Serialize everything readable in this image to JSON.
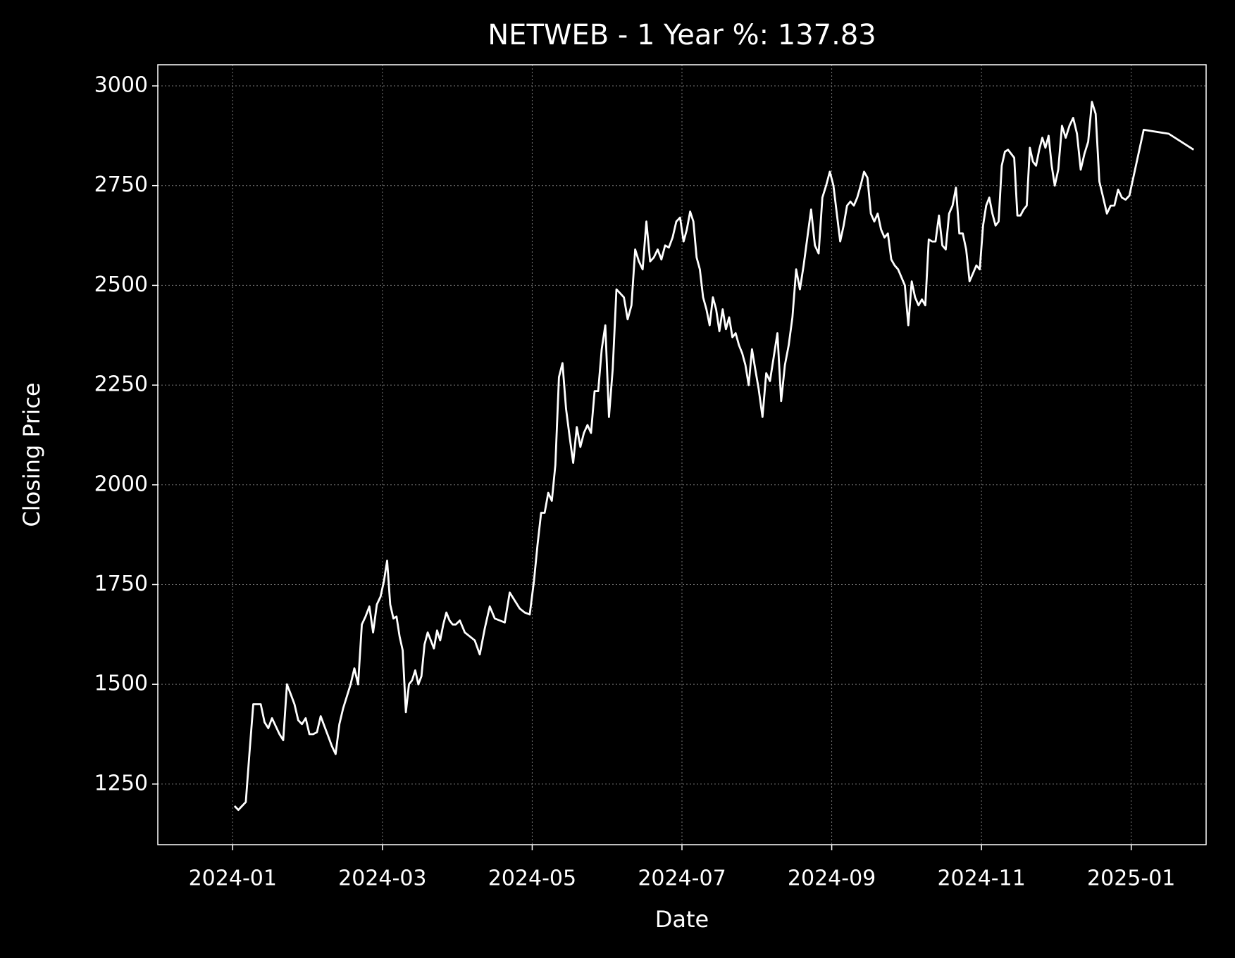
{
  "chart_data": {
    "type": "line",
    "title": "NETWEB - 1 Year %: 137.83",
    "x_label": "Date",
    "y_label": "Closing Price",
    "color": "#ffffff",
    "grid": true,
    "xlim": [
      "2023-12",
      "2025-02"
    ],
    "xticks": [
      "2024-01",
      "2024-03",
      "2024-05",
      "2024-07",
      "2024-09",
      "2024-11",
      "2025-01"
    ],
    "ylim": [
      1098,
      3053
    ],
    "yticks": [
      1250,
      1500,
      1750,
      2000,
      2250,
      2500,
      2750,
      3000
    ],
    "x": [
      "2024-01",
      "2024-01",
      "2024-01",
      "2024-01",
      "2024-01",
      "2024-01",
      "2024-01",
      "2024-01",
      "2024-01",
      "2024-01",
      "2024-01",
      "2024-01",
      "2024-01",
      "2024-01",
      "2024-01",
      "2024-01",
      "2024-01",
      "2024-01",
      "2024-01",
      "2024-01",
      "2024-02",
      "2024-02",
      "2024-02",
      "2024-02",
      "2024-02",
      "2024-02",
      "2024-02",
      "2024-02",
      "2024-02",
      "2024-02",
      "2024-02",
      "2024-02",
      "2024-02",
      "2024-02",
      "2024-02",
      "2024-02",
      "2024-02",
      "2024-02",
      "2024-02",
      "2024-02",
      "2024-03",
      "2024-03",
      "2024-03",
      "2024-03",
      "2024-03",
      "2024-03",
      "2024-03",
      "2024-03",
      "2024-03",
      "2024-03",
      "2024-03",
      "2024-03",
      "2024-03",
      "2024-03",
      "2024-03",
      "2024-03",
      "2024-03",
      "2024-03",
      "2024-03",
      "2024-03",
      "2024-03",
      "2024-03",
      "2024-03",
      "2024-03",
      "2024-04",
      "2024-04",
      "2024-04",
      "2024-04",
      "2024-04",
      "2024-04",
      "2024-04",
      "2024-04",
      "2024-04",
      "2024-04",
      "2024-04",
      "2024-04",
      "2024-04",
      "2024-04",
      "2024-04",
      "2024-05",
      "2024-05",
      "2024-05",
      "2024-05",
      "2024-05",
      "2024-05",
      "2024-05",
      "2024-05",
      "2024-05",
      "2024-05",
      "2024-05",
      "2024-05",
      "2024-05",
      "2024-05",
      "2024-05",
      "2024-05",
      "2024-05",
      "2024-05",
      "2024-05",
      "2024-05",
      "2024-05",
      "2024-06",
      "2024-06",
      "2024-06",
      "2024-06",
      "2024-06",
      "2024-06",
      "2024-06",
      "2024-06",
      "2024-06",
      "2024-06",
      "2024-06",
      "2024-06",
      "2024-06",
      "2024-06",
      "2024-06",
      "2024-06",
      "2024-06",
      "2024-06",
      "2024-06",
      "2024-06",
      "2024-07",
      "2024-07",
      "2024-07",
      "2024-07",
      "2024-07",
      "2024-07",
      "2024-07",
      "2024-07",
      "2024-07",
      "2024-07",
      "2024-07",
      "2024-07",
      "2024-07",
      "2024-07",
      "2024-07",
      "2024-07",
      "2024-07",
      "2024-07",
      "2024-07",
      "2024-07",
      "2024-07",
      "2024-07",
      "2024-07",
      "2024-08",
      "2024-08",
      "2024-08",
      "2024-08",
      "2024-08",
      "2024-08",
      "2024-08",
      "2024-08",
      "2024-08",
      "2024-08",
      "2024-08",
      "2024-08",
      "2024-08",
      "2024-08",
      "2024-08",
      "2024-08",
      "2024-08",
      "2024-08",
      "2024-08",
      "2024-08",
      "2024-09",
      "2024-09",
      "2024-09",
      "2024-09",
      "2024-09",
      "2024-09",
      "2024-09",
      "2024-09",
      "2024-09",
      "2024-09",
      "2024-09",
      "2024-09",
      "2024-09",
      "2024-09",
      "2024-09",
      "2024-09",
      "2024-09",
      "2024-09",
      "2024-09",
      "2024-09",
      "2024-09",
      "2024-09",
      "2024-10",
      "2024-10",
      "2024-10",
      "2024-10",
      "2024-10",
      "2024-10",
      "2024-10",
      "2024-10",
      "2024-10",
      "2024-10",
      "2024-10",
      "2024-10",
      "2024-10",
      "2024-10",
      "2024-10",
      "2024-10",
      "2024-10",
      "2024-10",
      "2024-10",
      "2024-10",
      "2024-10",
      "2024-10",
      "2024-11",
      "2024-11",
      "2024-11",
      "2024-11",
      "2024-11",
      "2024-11",
      "2024-11",
      "2024-11",
      "2024-11",
      "2024-11",
      "2024-11",
      "2024-11",
      "2024-11",
      "2024-11",
      "2024-11",
      "2024-11",
      "2024-11",
      "2024-11",
      "2024-11",
      "2024-11",
      "2024-11",
      "2024-11",
      "2024-11",
      "2024-11",
      "2024-12",
      "2024-12",
      "2024-12",
      "2024-12",
      "2024-12",
      "2024-12",
      "2024-12",
      "2024-12",
      "2024-12",
      "2024-12",
      "2024-12",
      "2024-12",
      "2024-12",
      "2024-12",
      "2024-12",
      "2024-12",
      "2024-12",
      "2024-12",
      "2024-12",
      "2024-12",
      "2025-01",
      "2025-01",
      "2025-01"
    ],
    "values": [
      1195,
      1185,
      1195,
      1205,
      1330,
      1450,
      1450,
      1450,
      1405,
      1390,
      1415,
      1395,
      1375,
      1360,
      1500,
      1475,
      1450,
      1410,
      1400,
      1415,
      1375,
      1375,
      1380,
      1420,
      1395,
      1370,
      1345,
      1325,
      1400,
      1440,
      1470,
      1500,
      1540,
      1500,
      1650,
      1670,
      1695,
      1630,
      1700,
      1720,
      1760,
      1810,
      1700,
      1665,
      1670,
      1620,
      1585,
      1430,
      1500,
      1510,
      1535,
      1500,
      1520,
      1600,
      1630,
      1610,
      1590,
      1635,
      1610,
      1650,
      1680,
      1660,
      1650,
      1650,
      1660,
      1630,
      1620,
      1610,
      1575,
      1640,
      1695,
      1665,
      1660,
      1655,
      1730,
      1710,
      1690,
      1680,
      1675,
      1760,
      1850,
      1930,
      1930,
      1980,
      1960,
      2050,
      2270,
      2305,
      2190,
      2120,
      2055,
      2145,
      2095,
      2130,
      2150,
      2130,
      2235,
      2235,
      2340,
      2400,
      2170,
      2290,
      2490,
      2480,
      2470,
      2415,
      2450,
      2590,
      2560,
      2540,
      2660,
      2560,
      2570,
      2590,
      2565,
      2600,
      2595,
      2620,
      2660,
      2670,
      2610,
      2640,
      2685,
      2660,
      2570,
      2540,
      2470,
      2440,
      2400,
      2470,
      2440,
      2385,
      2440,
      2390,
      2420,
      2370,
      2380,
      2350,
      2330,
      2300,
      2250,
      2340,
      2290,
      2240,
      2170,
      2280,
      2260,
      2320,
      2380,
      2210,
      2300,
      2350,
      2420,
      2540,
      2490,
      2550,
      2620,
      2690,
      2600,
      2580,
      2720,
      2750,
      2785,
      2750,
      2680,
      2610,
      2650,
      2700,
      2710,
      2700,
      2720,
      2750,
      2785,
      2770,
      2680,
      2660,
      2680,
      2640,
      2620,
      2630,
      2565,
      2550,
      2540,
      2520,
      2500,
      2400,
      2510,
      2470,
      2450,
      2465,
      2450,
      2615,
      2610,
      2610,
      2675,
      2600,
      2590,
      2680,
      2700,
      2745,
      2630,
      2630,
      2590,
      2510,
      2530,
      2550,
      2540,
      2650,
      2700,
      2720,
      2680,
      2650,
      2660,
      2800,
      2835,
      2840,
      2830,
      2820,
      2675,
      2675,
      2690,
      2700,
      2845,
      2810,
      2800,
      2840,
      2870,
      2845,
      2875,
      2800,
      2750,
      2790,
      2900,
      2870,
      2900,
      2920,
      2880,
      2790,
      2830,
      2860,
      2960,
      2930,
      2760,
      2720,
      2680,
      2700,
      2700,
      2740,
      2720,
      2715,
      2725,
      2890,
      2880,
      2840
    ]
  }
}
